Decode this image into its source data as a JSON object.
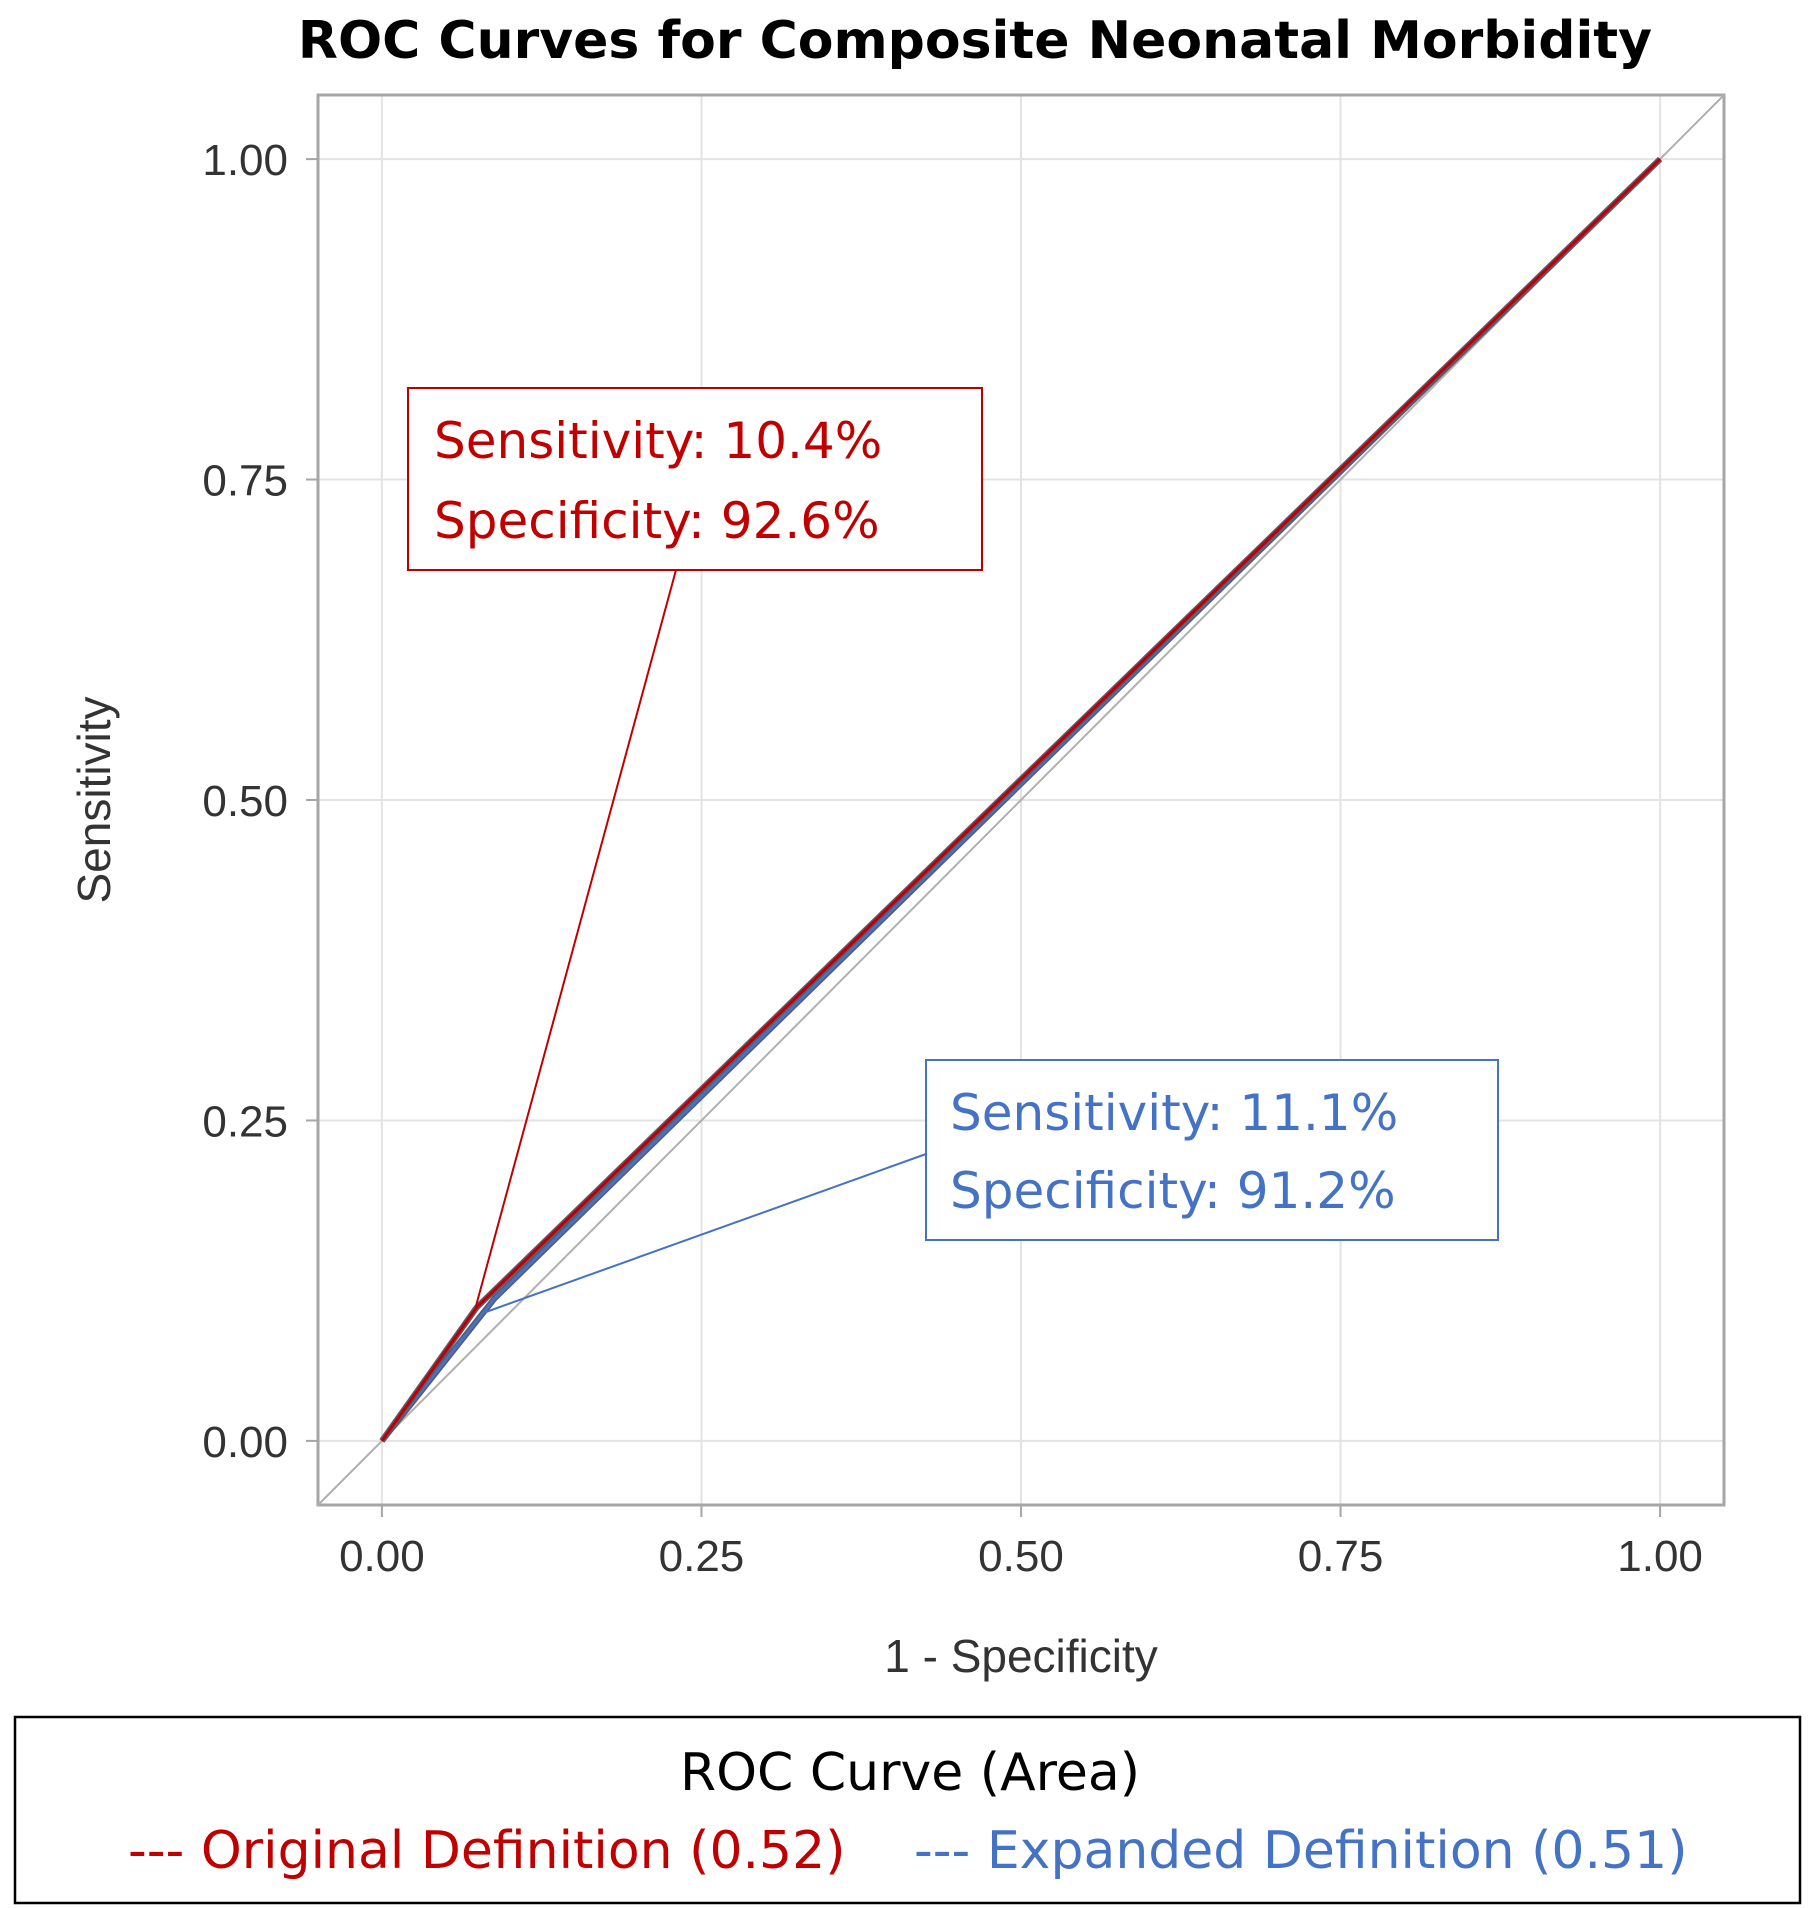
{
  "colors": {
    "original": "#C00000",
    "expanded": "#4472C4",
    "grid": "#E3E3E3",
    "frame": "#A6A6A6",
    "reference": "#B0B0B0"
  },
  "chart_data": {
    "type": "line",
    "title": "ROC Curves for Composite Neonatal Morbidity",
    "xlabel": "1 - Specificity",
    "ylabel": "Sensitivity",
    "xlim": [
      -0.05,
      1.05
    ],
    "ylim": [
      -0.05,
      1.05
    ],
    "xticks": [
      "0.00",
      "0.25",
      "0.50",
      "0.75",
      "1.00"
    ],
    "yticks": [
      "0.00",
      "0.25",
      "0.50",
      "0.75",
      "1.00"
    ],
    "grid": true,
    "reference_line": true,
    "series": [
      {
        "name": "Original Definition (0.52)",
        "color": "#C00000",
        "x": [
          0.0,
          0.074,
          1.0
        ],
        "y": [
          0.0,
          0.104,
          1.0
        ]
      },
      {
        "name": "Expanded Definition (0.51)",
        "color": "#4472C4",
        "x": [
          0.0,
          0.088,
          1.0
        ],
        "y": [
          0.0,
          0.111,
          1.0
        ]
      }
    ],
    "annotations": [
      {
        "series": "Original Definition (0.52)",
        "lines": [
          "Sensitivity: 10.4%",
          "Specificity: 92.6%"
        ],
        "point": [
          0.074,
          0.104
        ],
        "color": "#C00000"
      },
      {
        "series": "Expanded Definition (0.51)",
        "lines": [
          "Sensitivity: 11.1%",
          "Specificity: 91.2%"
        ],
        "point": [
          0.088,
          0.111
        ],
        "color": "#4472C4"
      }
    ],
    "legend": {
      "title": "ROC Curve (Area)",
      "position": "bottom",
      "items": [
        "--- Original Definition (0.52)",
        "--- Expanded Definition (0.51)"
      ]
    }
  }
}
